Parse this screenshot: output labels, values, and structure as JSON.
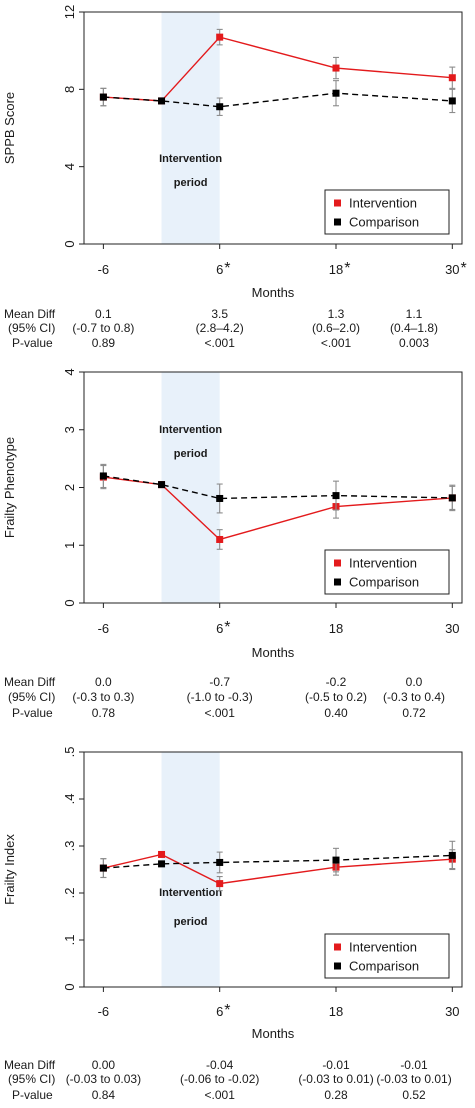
{
  "colors": {
    "intervention": "#e31a1c",
    "comparison": "#000000",
    "shade": "#e8f1fa",
    "axis": "#222222",
    "error_bar": "#8c8c8c"
  },
  "chart_data": [
    {
      "type": "line",
      "ylabel": "SPPB Score",
      "xlabel": "Months",
      "ylim": [
        0,
        12
      ],
      "yticks": [
        "0",
        "4",
        "8",
        "12"
      ],
      "yticks_values": [
        0,
        4,
        8,
        12
      ],
      "xlim": [
        -8,
        31
      ],
      "xticks": [
        {
          "x": -6,
          "label": "-6",
          "star": ""
        },
        {
          "x": 6,
          "label": "6",
          "star": "*"
        },
        {
          "x": 18,
          "label": "18",
          "star": "*"
        },
        {
          "x": 30,
          "label": "30",
          "star": "*"
        }
      ],
      "shade_range": [
        0,
        6
      ],
      "annotation": [
        "Intervention",
        "period"
      ],
      "annotation_pos": "inside-shade-middle",
      "legend_position": "bottom-right",
      "grid": false,
      "series": [
        {
          "name": "Intervention",
          "color": "#e31a1c",
          "dashed": false,
          "x": [
            -6,
            0,
            6,
            18,
            30
          ],
          "y": [
            7.6,
            7.4,
            10.7,
            9.1,
            8.6
          ],
          "err": [
            0.45,
            0,
            0.4,
            0.55,
            0.55
          ]
        },
        {
          "name": "Comparison",
          "color": "#000000",
          "dashed": true,
          "x": [
            -6,
            0,
            6,
            18,
            30
          ],
          "y": [
            7.6,
            7.4,
            7.1,
            7.8,
            7.4
          ],
          "err": [
            0.45,
            0,
            0.45,
            0.65,
            0.6
          ]
        }
      ],
      "table": {
        "row_labels": [
          "Mean Diff",
          "(95% CI)",
          "P-value"
        ],
        "columns": [
          {
            "x": -6,
            "diff": "0.1",
            "ci": "(-0.7 to 0.8)",
            "p": "0.89"
          },
          {
            "x": 6,
            "diff": "3.5",
            "ci": "(2.8–4.2)",
            "p": "<.001"
          },
          {
            "x": 18,
            "diff": "1.3",
            "ci": "(0.6–2.0)",
            "p": "<.001"
          },
          {
            "x": 30,
            "diff": "1.1",
            "ci": "(0.4–1.8)",
            "p": "0.003"
          }
        ]
      }
    },
    {
      "type": "line",
      "ylabel": "Frailty Phenotype",
      "xlabel": "Months",
      "ylim": [
        0,
        4
      ],
      "yticks": [
        "0",
        "1",
        "2",
        "3",
        "4"
      ],
      "yticks_values": [
        0,
        1,
        2,
        3,
        4
      ],
      "xlim": [
        -8,
        31
      ],
      "xticks": [
        {
          "x": -6,
          "label": "-6",
          "star": ""
        },
        {
          "x": 6,
          "label": "6",
          "star": "*"
        },
        {
          "x": 18,
          "label": "18",
          "star": ""
        },
        {
          "x": 30,
          "label": "30",
          "star": ""
        }
      ],
      "shade_range": [
        0,
        6
      ],
      "annotation": [
        "Intervention",
        "period"
      ],
      "annotation_pos": "inside-shade-top",
      "legend_position": "bottom-right",
      "grid": false,
      "series": [
        {
          "name": "Intervention",
          "color": "#e31a1c",
          "dashed": false,
          "x": [
            -6,
            0,
            6,
            18,
            30
          ],
          "y": [
            2.18,
            2.05,
            1.1,
            1.67,
            1.82
          ],
          "err": [
            0.2,
            0,
            0.17,
            0.2,
            0.2
          ]
        },
        {
          "name": "Comparison",
          "color": "#000000",
          "dashed": true,
          "x": [
            -6,
            0,
            6,
            18,
            30
          ],
          "y": [
            2.2,
            2.05,
            1.81,
            1.86,
            1.82
          ],
          "err": [
            0.2,
            0,
            0.25,
            0.25,
            0.22
          ]
        }
      ],
      "table": {
        "row_labels": [
          "Mean Diff",
          "(95% CI)",
          "P-value"
        ],
        "columns": [
          {
            "x": -6,
            "diff": "0.0",
            "ci": "(-0.3 to 0.3)",
            "p": "0.78"
          },
          {
            "x": 6,
            "diff": "-0.7",
            "ci": "(-1.0 to -0.3)",
            "p": "<.001"
          },
          {
            "x": 18,
            "diff": "-0.2",
            "ci": "(-0.5 to 0.2)",
            "p": "0.40"
          },
          {
            "x": 30,
            "diff": "0.0",
            "ci": "(-0.3 to 0.4)",
            "p": "0.72"
          }
        ]
      }
    },
    {
      "type": "line",
      "ylabel": "Frailty Index",
      "xlabel": "Months",
      "ylim": [
        0,
        0.5
      ],
      "yticks": [
        "0",
        ".1",
        ".2",
        ".3",
        ".4",
        ".5"
      ],
      "yticks_values": [
        0,
        0.1,
        0.2,
        0.3,
        0.4,
        0.5
      ],
      "xlim": [
        -8,
        31
      ],
      "xticks": [
        {
          "x": -6,
          "label": "-6",
          "star": ""
        },
        {
          "x": 6,
          "label": "6",
          "star": "*"
        },
        {
          "x": 18,
          "label": "18",
          "star": ""
        },
        {
          "x": 30,
          "label": "30",
          "star": ""
        }
      ],
      "shade_range": [
        0,
        6
      ],
      "annotation": [
        "Intervention",
        "period"
      ],
      "annotation_pos": "inside-shade-middle",
      "legend_position": "bottom-right",
      "grid": false,
      "series": [
        {
          "name": "Intervention",
          "color": "#e31a1c",
          "dashed": false,
          "x": [
            -6,
            0,
            6,
            18,
            30
          ],
          "y": [
            0.253,
            0.282,
            0.22,
            0.255,
            0.272
          ],
          "err": [
            0.02,
            0,
            0.015,
            0.017,
            0.02
          ]
        },
        {
          "name": "Comparison",
          "color": "#000000",
          "dashed": true,
          "x": [
            -6,
            0,
            6,
            18,
            30
          ],
          "y": [
            0.253,
            0.262,
            0.265,
            0.27,
            0.28
          ],
          "err": [
            0.02,
            0,
            0.022,
            0.025,
            0.03
          ]
        }
      ],
      "table": {
        "row_labels": [
          "Mean Diff",
          "(95% CI)",
          "P-value"
        ],
        "columns": [
          {
            "x": -6,
            "diff": "0.00",
            "ci": "(-0.03 to 0.03)",
            "p": "0.84"
          },
          {
            "x": 6,
            "diff": "-0.04",
            "ci": "(-0.06 to -0.02)",
            "p": "<.001"
          },
          {
            "x": 18,
            "diff": "-0.01",
            "ci": "(-0.03 to 0.01)",
            "p": "0.28"
          },
          {
            "x": 30,
            "diff": "-0.01",
            "ci": "(-0.03 to 0.01)",
            "p": "0.52"
          }
        ]
      }
    }
  ]
}
